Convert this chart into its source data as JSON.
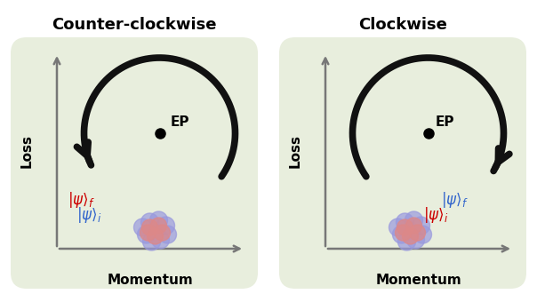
{
  "bg_color": "#ffffff",
  "panel_bg": "#e8eedd",
  "titles": [
    "Counter-clockwise",
    "Clockwise"
  ],
  "title_fontsize": 13,
  "xlabel": "Momentum",
  "ylabel": "Loss",
  "ep_label": "EP",
  "arrow_color": "#111111",
  "axis_color": "#777777",
  "left_panel": {
    "psi_f_color": "#cc0000",
    "psi_i_color": "#3366cc"
  },
  "right_panel": {
    "psi_f_color": "#3366cc",
    "psi_i_color": "#cc0000"
  }
}
